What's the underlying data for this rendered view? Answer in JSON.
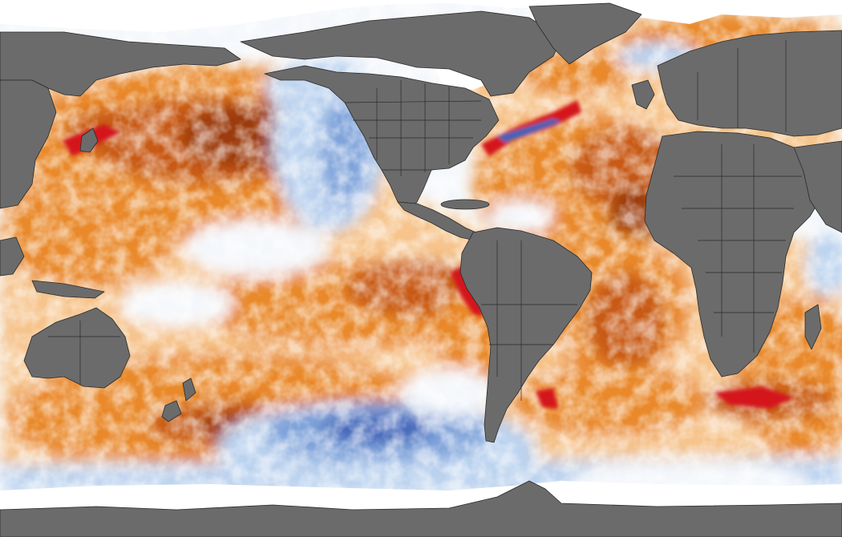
{
  "map": {
    "colors": {
      "land": "#6b6b6b",
      "border": "#2a2a2a",
      "sea_ice": "#ffffff",
      "ocean_neutral": "#f4f7fb",
      "anomaly_warm_light": "#f6c48c",
      "anomaly_warm": "#e9892c",
      "anomaly_warm_strong": "#c85a16",
      "anomaly_warm_deep": "#9c3a10",
      "anomaly_extreme": "#d4191f",
      "anomaly_cool_light": "#bcd3ef",
      "anomaly_cool": "#7fa3da",
      "anomaly_cool_strong": "#3f63b8"
    },
    "regions": [
      {
        "name": "north-pacific-warm-blob",
        "level": "warm-deep"
      },
      {
        "name": "south-pacific-warm-band",
        "level": "warm-deep"
      },
      {
        "name": "peru-coast-hotspot",
        "level": "extreme"
      },
      {
        "name": "kuroshio-hotspot",
        "level": "extreme"
      },
      {
        "name": "gulf-stream-hotspot",
        "level": "extreme"
      },
      {
        "name": "agulhas-hotspot",
        "level": "extreme"
      },
      {
        "name": "california-current-cool",
        "level": "cool"
      },
      {
        "name": "southeast-pacific-cool",
        "level": "cool-strong"
      },
      {
        "name": "tropical-atlantic-warm",
        "level": "warm-strong"
      }
    ]
  }
}
